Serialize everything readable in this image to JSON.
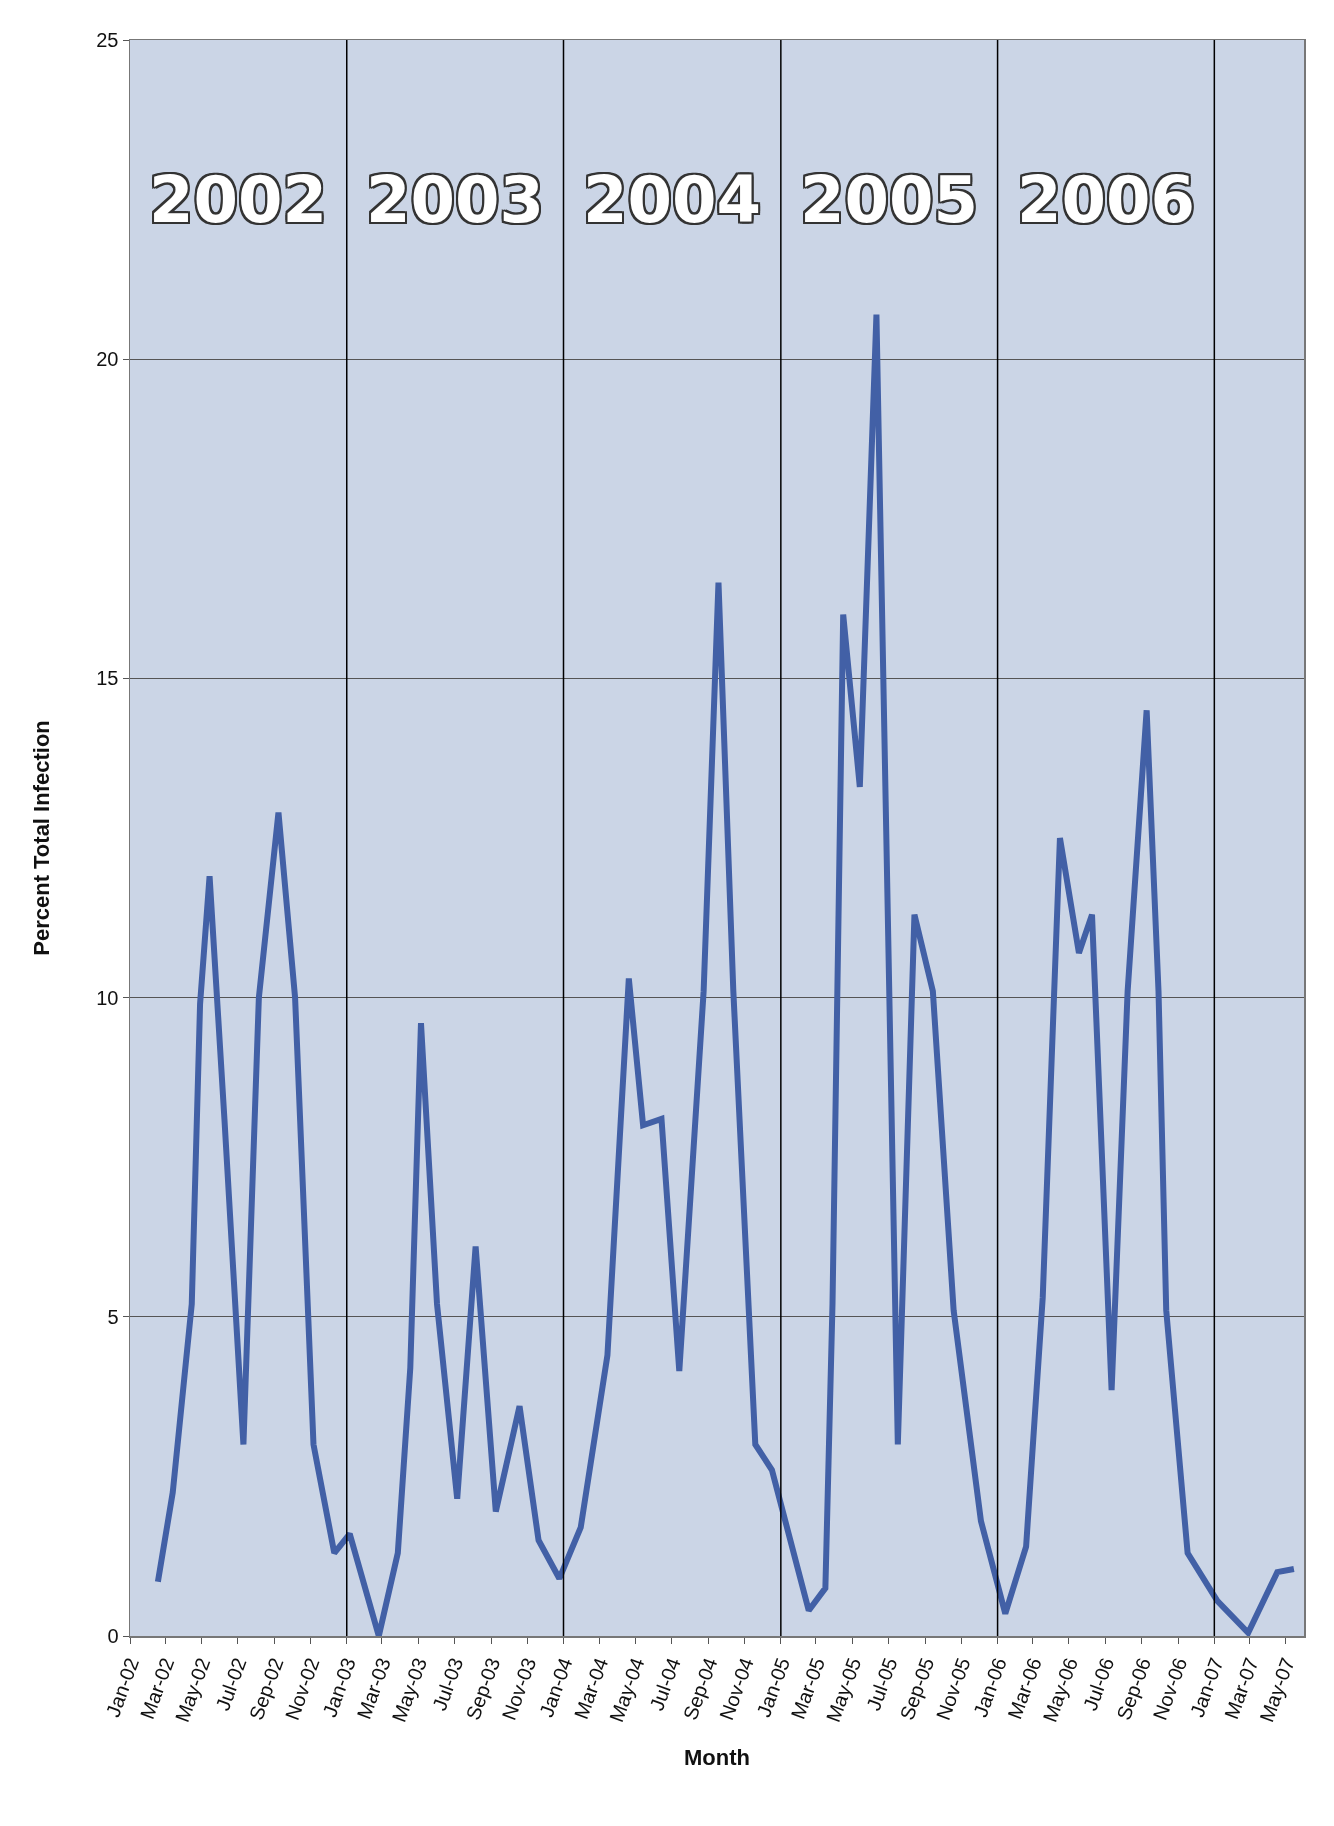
{
  "chart_data": {
    "type": "line",
    "xlabel": "Month",
    "ylabel": "Percent Total Infection",
    "x": [
      "2002-02-17",
      "2002-03-14",
      "2002-04-15",
      "2002-04-29",
      "2002-05-15",
      "2002-06-09",
      "2002-07-11",
      "2002-08-06",
      "2002-09-08",
      "2002-10-06",
      "2002-11-06",
      "2002-12-11",
      "2003-01-06",
      "2003-02-24",
      "2003-03-28",
      "2003-04-18",
      "2003-05-06",
      "2003-06-02",
      "2003-07-06",
      "2003-08-06",
      "2003-09-09",
      "2003-10-19",
      "2003-11-20",
      "2003-12-25",
      "2004-01-30",
      "2004-03-15",
      "2004-04-20",
      "2004-05-14",
      "2004-06-14",
      "2004-07-14",
      "2004-08-24",
      "2004-09-18",
      "2004-10-13",
      "2004-11-19",
      "2004-12-17",
      "2005-02-17",
      "2005-03-17",
      "2005-03-29",
      "2005-04-16",
      "2005-05-14",
      "2005-06-11",
      "2005-07-17",
      "2005-08-14",
      "2005-09-14",
      "2005-10-19",
      "2005-12-04",
      "2006-01-14",
      "2006-02-18",
      "2006-03-18",
      "2006-04-16",
      "2006-05-18",
      "2006-06-09",
      "2006-07-12",
      "2006-08-08",
      "2006-09-09",
      "2006-09-29",
      "2006-10-12",
      "2006-11-17",
      "2007-01-06",
      "2007-02-27",
      "2007-04-17",
      "2007-05-15"
    ],
    "series": [
      {
        "color": "#4260a6",
        "values": [
          0.85,
          2.25,
          5.2,
          9.9,
          11.9,
          8.1,
          3.0,
          10.0,
          12.9,
          10.0,
          3.0,
          1.3,
          1.6,
          0,
          1.3,
          4.2,
          9.6,
          5.2,
          2.15,
          6.1,
          1.95,
          3.6,
          1.5,
          0.9,
          1.7,
          4.4,
          10.3,
          8.0,
          8.1,
          4.15,
          10.1,
          16.5,
          10.1,
          3.0,
          2.6,
          0.4,
          0.75,
          5.2,
          16.0,
          13.3,
          20.7,
          3.0,
          11.3,
          10.1,
          5.1,
          1.8,
          0.35,
          1.4,
          5.3,
          12.5,
          10.7,
          11.3,
          3.85,
          10.1,
          14.5,
          10.1,
          5.1,
          1.3,
          0.55,
          0.05,
          1.0,
          1.05
        ]
      }
    ],
    "xlim": [
      "2002-01",
      "2007-06"
    ],
    "xticks": [
      {
        "value": "2002-01",
        "label": "Jan-02"
      },
      {
        "value": "2002-03",
        "label": "Mar-02"
      },
      {
        "value": "2002-05",
        "label": "May-02"
      },
      {
        "value": "2002-07",
        "label": "Jul-02"
      },
      {
        "value": "2002-09",
        "label": "Sep-02"
      },
      {
        "value": "2002-11",
        "label": "Nov-02"
      },
      {
        "value": "2003-01",
        "label": "Jan-03"
      },
      {
        "value": "2003-03",
        "label": "Mar-03"
      },
      {
        "value": "2003-05",
        "label": "May-03"
      },
      {
        "value": "2003-07",
        "label": "Jul-03"
      },
      {
        "value": "2003-09",
        "label": "Sep-03"
      },
      {
        "value": "2003-11",
        "label": "Nov-03"
      },
      {
        "value": "2004-01",
        "label": "Jan-04"
      },
      {
        "value": "2004-03",
        "label": "Mar-04"
      },
      {
        "value": "2004-05",
        "label": "May-04"
      },
      {
        "value": "2004-07",
        "label": "Jul-04"
      },
      {
        "value": "2004-09",
        "label": "Sep-04"
      },
      {
        "value": "2004-11",
        "label": "Nov-04"
      },
      {
        "value": "2005-01",
        "label": "Jan-05"
      },
      {
        "value": "2005-03",
        "label": "Mar-05"
      },
      {
        "value": "2005-05",
        "label": "May-05"
      },
      {
        "value": "2005-07",
        "label": "Jul-05"
      },
      {
        "value": "2005-09",
        "label": "Sep-05"
      },
      {
        "value": "2005-11",
        "label": "Nov-05"
      },
      {
        "value": "2006-01",
        "label": "Jan-06"
      },
      {
        "value": "2006-03",
        "label": "Mar-06"
      },
      {
        "value": "2006-05",
        "label": "May-06"
      },
      {
        "value": "2006-07",
        "label": "Jul-06"
      },
      {
        "value": "2006-09",
        "label": "Sep-06"
      },
      {
        "value": "2006-11",
        "label": "Nov-06"
      },
      {
        "value": "2007-01",
        "label": "Jan-07"
      },
      {
        "value": "2007-03",
        "label": "Mar-07"
      },
      {
        "value": "2007-05",
        "label": "May-07"
      }
    ],
    "ylim": [
      0,
      25
    ],
    "yticks": [
      0,
      5,
      10,
      15,
      20,
      25
    ],
    "grid": "y",
    "marker": "none",
    "line_style": "solid",
    "ref_lines": [
      {
        "axis": "x",
        "value": "2003-01",
        "color": "#000000"
      },
      {
        "axis": "x",
        "value": "2004-01",
        "color": "#000000"
      },
      {
        "axis": "x",
        "value": "2005-01",
        "color": "#000000"
      },
      {
        "axis": "x",
        "value": "2006-01",
        "color": "#000000"
      },
      {
        "axis": "x",
        "value": "2007-01",
        "color": "#000000"
      }
    ],
    "annotations": [
      "2002",
      "2003",
      "2004",
      "2005",
      "2006"
    ]
  }
}
